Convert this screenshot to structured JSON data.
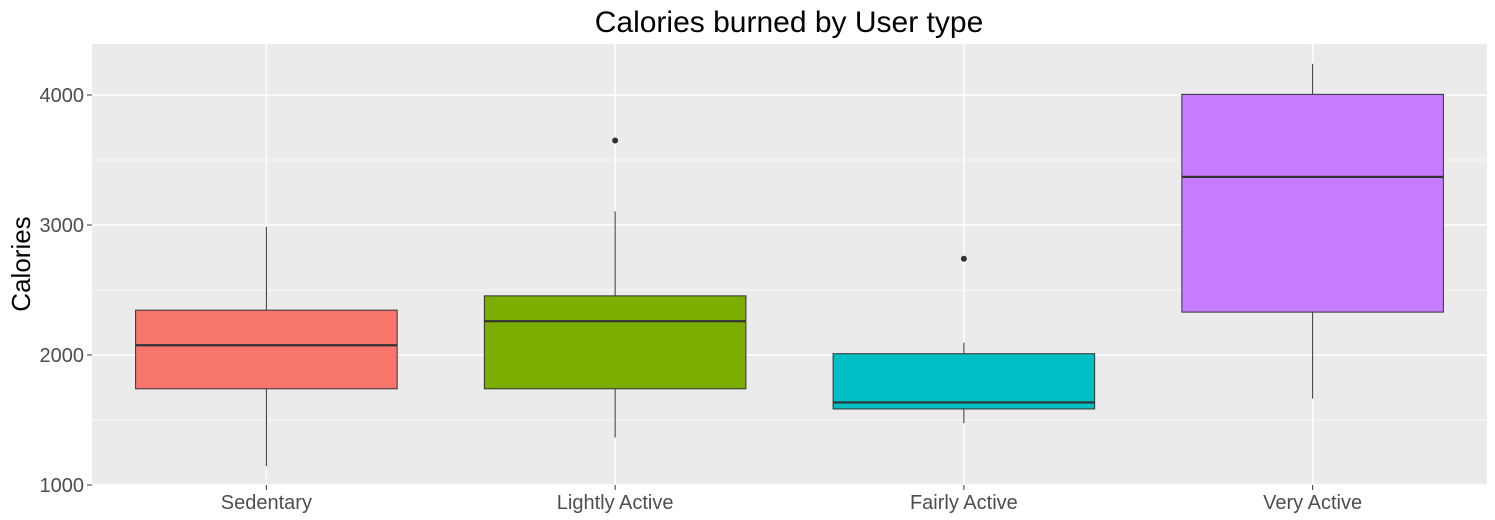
{
  "chart_data": {
    "type": "boxplot",
    "title": "Calories burned by User type",
    "xlabel": "",
    "ylabel": "Calories",
    "ylim": [
      1000,
      4400
    ],
    "yticks": [
      1000,
      2000,
      3000,
      4000
    ],
    "ytick_labels": [
      "1000",
      "2000",
      "3000",
      "4000"
    ],
    "categories": [
      "Sedentary",
      "Lightly Active",
      "Fairly Active",
      "Very Active"
    ],
    "series": [
      {
        "category": "Sedentary",
        "color": "#F8766D",
        "whisker_low": 1145,
        "q1": 1740,
        "median": 2075,
        "q3": 2345,
        "whisker_high": 2985,
        "outliers": []
      },
      {
        "category": "Lightly Active",
        "color": "#7CAE00",
        "whisker_low": 1365,
        "q1": 1740,
        "median": 2260,
        "q3": 2455,
        "whisker_high": 3105,
        "outliers": [
          3650
        ]
      },
      {
        "category": "Fairly Active",
        "color": "#00BFC4",
        "whisker_low": 1475,
        "q1": 1585,
        "median": 1635,
        "q3": 2010,
        "whisker_high": 2095,
        "outliers": [
          2740
        ]
      },
      {
        "category": "Very Active",
        "color": "#C77CFF",
        "whisker_low": 1665,
        "q1": 2330,
        "median": 3370,
        "q3": 4005,
        "whisker_high": 4240,
        "outliers": []
      }
    ],
    "grid": true,
    "legend": "none",
    "panel_background": "#EBEBEB",
    "grid_color": "#FFFFFF"
  }
}
